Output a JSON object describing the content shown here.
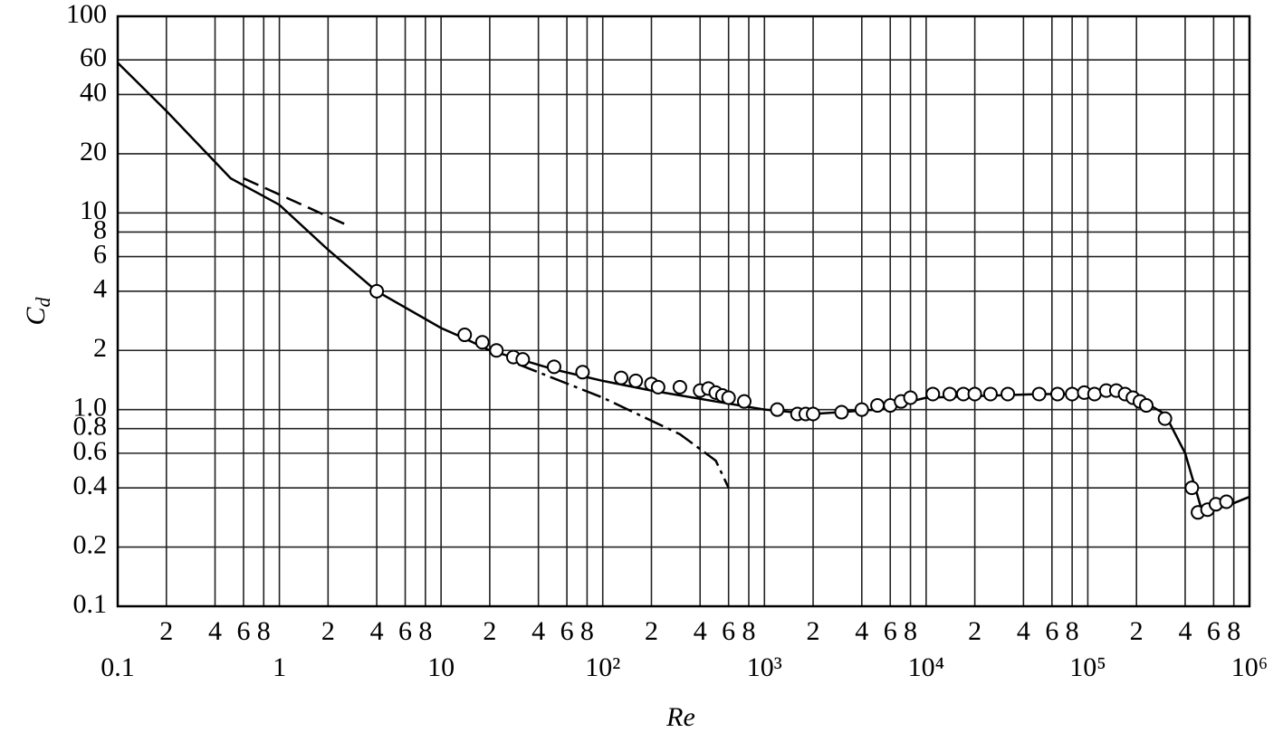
{
  "chart_data": {
    "type": "line",
    "log_x": true,
    "log_y": true,
    "grid": true,
    "xlabel": "Re",
    "ylabel": {
      "main": "C",
      "sub": "d"
    },
    "xlim": [
      0.1,
      1000000
    ],
    "ylim": [
      0.1,
      100
    ],
    "xticks": [
      {
        "value": 0.1,
        "label": "0.1"
      },
      1,
      10,
      {
        "value": 100,
        "label": "10²"
      },
      {
        "value": 1000,
        "label": "10³"
      },
      {
        "value": 10000,
        "label": "10⁴"
      },
      {
        "value": 100000,
        "label": "10⁵"
      },
      {
        "value": 1000000,
        "label": "10⁶"
      }
    ],
    "xticks_minor": [
      {
        "value": 0.2,
        "label": "2"
      },
      {
        "value": 0.4,
        "label": "4"
      },
      {
        "value": 0.6,
        "label": "6"
      },
      {
        "value": 0.8,
        "label": "8"
      },
      {
        "value": 2,
        "label": "2"
      },
      {
        "value": 4,
        "label": "4"
      },
      {
        "value": 6,
        "label": "6"
      },
      {
        "value": 8,
        "label": "8"
      },
      {
        "value": 20,
        "label": "2"
      },
      {
        "value": 40,
        "label": "4"
      },
      {
        "value": 60,
        "label": "6"
      },
      {
        "value": 80,
        "label": "8"
      },
      {
        "value": 200,
        "label": "2"
      },
      {
        "value": 400,
        "label": "4"
      },
      {
        "value": 600,
        "label": "6"
      },
      {
        "value": 800,
        "label": "8"
      },
      {
        "value": 2000,
        "label": "2"
      },
      {
        "value": 4000,
        "label": "4"
      },
      {
        "value": 6000,
        "label": "6"
      },
      {
        "value": 8000,
        "label": "8"
      },
      {
        "value": 20000,
        "label": "2"
      },
      {
        "value": 40000,
        "label": "4"
      },
      {
        "value": 60000,
        "label": "6"
      },
      {
        "value": 80000,
        "label": "8"
      },
      {
        "value": 200000,
        "label": "2"
      },
      {
        "value": 400000,
        "label": "4"
      },
      {
        "value": 600000,
        "label": "6"
      },
      {
        "value": 800000,
        "label": "8"
      }
    ],
    "yticks": [
      100,
      60,
      40,
      20,
      10,
      8,
      6,
      4,
      2,
      {
        "value": 1,
        "label": "1.0"
      },
      0.8,
      0.6,
      0.4,
      0.2,
      0.1
    ],
    "series": [
      {
        "style": "solid",
        "color": "#000000",
        "x": [
          0.1,
          0.2,
          0.5,
          1,
          2,
          4,
          10,
          14,
          20,
          50,
          100,
          200,
          500,
          1000,
          2000,
          5000,
          10000,
          50000,
          100000,
          150000,
          200000,
          300000,
          400000,
          500000,
          700000,
          1000000
        ],
        "values": [
          58,
          33,
          15,
          11,
          6.5,
          4,
          2.6,
          2.3,
          2.0,
          1.6,
          1.4,
          1.25,
          1.1,
          1.0,
          0.95,
          1.0,
          1.15,
          1.2,
          1.2,
          1.25,
          1.15,
          0.95,
          0.6,
          0.32,
          0.32,
          0.36
        ]
      },
      {
        "style": "dashed",
        "color": "#000000",
        "x": [
          0.6,
          2.6
        ],
        "values": [
          15,
          8.7
        ]
      },
      {
        "style": "dashdot",
        "color": "#000000",
        "x": [
          30,
          100,
          300,
          500,
          600
        ],
        "values": [
          1.7,
          1.15,
          0.75,
          0.55,
          0.4
        ]
      },
      {
        "style": "markers",
        "color": "#000000",
        "x": [
          4,
          14,
          18,
          22,
          28,
          32,
          50,
          75,
          130,
          160,
          200,
          220,
          300,
          400,
          450,
          500,
          550,
          600,
          750,
          1200,
          1600,
          1800,
          2000,
          3000,
          4000,
          5000,
          6000,
          7000,
          8000,
          11000,
          14000,
          17000,
          20000,
          25000,
          32000,
          50000,
          65000,
          80000,
          95000,
          110000,
          130000,
          150000,
          170000,
          190000,
          210000,
          230000,
          300000,
          440000,
          480000,
          550000,
          620000,
          720000
        ],
        "values": [
          4,
          2.4,
          2.2,
          2.0,
          1.85,
          1.8,
          1.65,
          1.55,
          1.45,
          1.4,
          1.35,
          1.3,
          1.3,
          1.25,
          1.28,
          1.22,
          1.18,
          1.15,
          1.1,
          1.0,
          0.95,
          0.95,
          0.95,
          0.97,
          1.0,
          1.05,
          1.05,
          1.1,
          1.15,
          1.2,
          1.2,
          1.2,
          1.2,
          1.2,
          1.2,
          1.2,
          1.2,
          1.2,
          1.22,
          1.2,
          1.25,
          1.25,
          1.2,
          1.15,
          1.1,
          1.05,
          0.9,
          0.4,
          0.3,
          0.31,
          0.33,
          0.34
        ]
      }
    ]
  }
}
